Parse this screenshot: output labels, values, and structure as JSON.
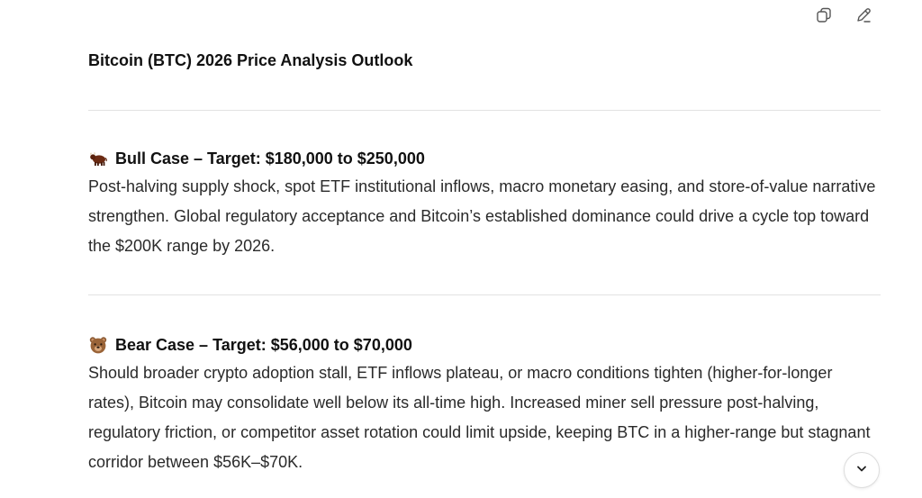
{
  "toolbar": {
    "copy_icon": "copy-icon",
    "edit_icon": "pencil-icon"
  },
  "document": {
    "title": "Bitcoin (BTC) 2026 Price Analysis Outlook",
    "sections": [
      {
        "emoji": "bull",
        "heading": "Bull Case – Target: $180,000 to $250,000",
        "body": "Post-halving supply shock, spot ETF institutional inflows, macro monetary easing, and store-of-value narrative strengthen. Global regulatory acceptance and Bitcoin’s established dominance could drive a cycle top toward the $200K range by 2026."
      },
      {
        "emoji": "bear",
        "heading": "Bear Case – Target: $56,000 to $70,000",
        "body": "Should broader crypto adoption stall, ETF inflows plateau, or macro conditions tighten (higher-for-longer rates), Bitcoin may consolidate well below its all-time high. Increased miner sell pressure post-halving, regulatory friction, or competitor asset rotation could limit upside, keeping BTC in a higher-range but stagnant corridor between $56K–$70K."
      }
    ]
  },
  "scroll_button": {
    "icon": "chevron-down-icon"
  }
}
